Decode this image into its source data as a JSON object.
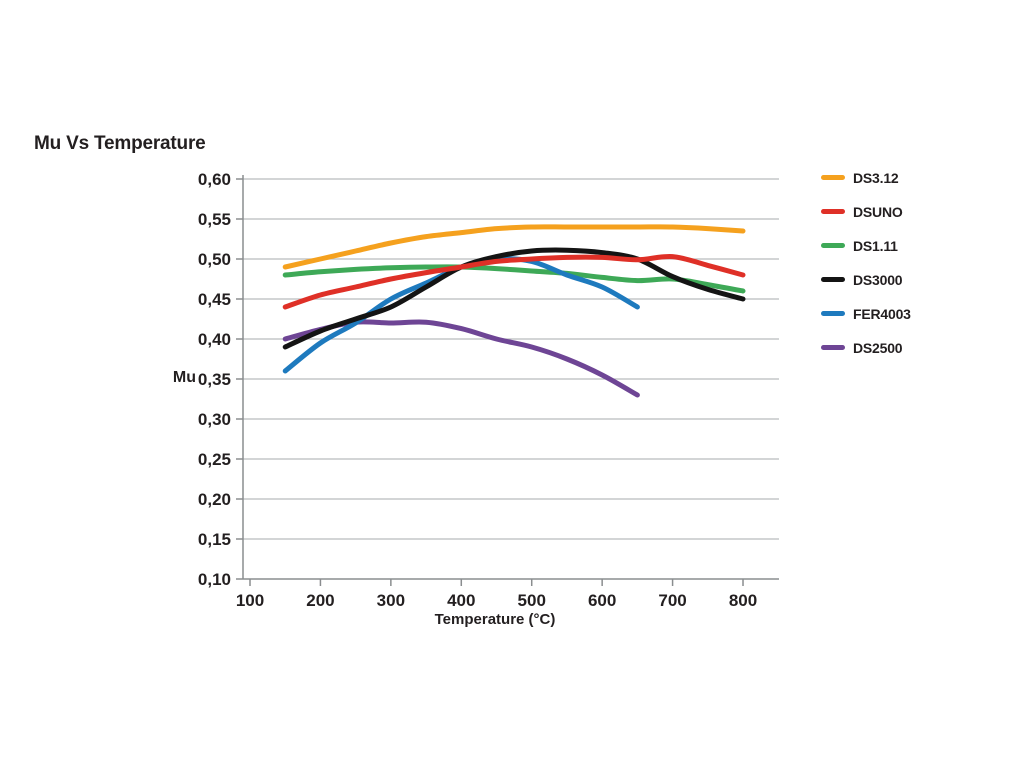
{
  "title": "Mu Vs Temperature",
  "axes": {
    "y_label": "Mu",
    "x_label": "Temperature (°C)",
    "y_tick_labels": [
      "0,60",
      "0,55",
      "0,50",
      "0,45",
      "0,40",
      "0,35",
      "0,30",
      "0,25",
      "0,20",
      "0,15",
      "0,10"
    ],
    "x_tick_labels": [
      "100",
      "200",
      "300",
      "400",
      "500",
      "600",
      "700",
      "800"
    ]
  },
  "legend": [
    {
      "label": "DS3.12",
      "color": "#F5A11E"
    },
    {
      "label": "DSUNO",
      "color": "#DF3027"
    },
    {
      "label": "DS1.11",
      "color": "#3EA957"
    },
    {
      "label": "DS3000",
      "color": "#141414"
    },
    {
      "label": "FER4003",
      "color": "#1E7ABE"
    },
    {
      "label": "DS2500",
      "color": "#6E4595"
    }
  ],
  "colors": {
    "text": "#231f20",
    "gridline": "#b9bcbe",
    "axis": "#8a8d8f",
    "background": "#ffffff"
  },
  "chart_data": {
    "type": "line",
    "title": "Mu Vs Temperature",
    "xlabel": "Temperature (°C)",
    "ylabel": "Mu",
    "xlim": [
      90,
      850
    ],
    "ylim": [
      0.1,
      0.6
    ],
    "y_tick_values": [
      0.6,
      0.55,
      0.5,
      0.45,
      0.4,
      0.35,
      0.3,
      0.25,
      0.2,
      0.15,
      0.1
    ],
    "x_tick_values": [
      100,
      200,
      300,
      400,
      500,
      600,
      700,
      800
    ],
    "grid": "horizontal-only",
    "legend_position": "right",
    "x": [
      150,
      200,
      250,
      300,
      350,
      400,
      450,
      500,
      550,
      600,
      650,
      700,
      750,
      800
    ],
    "series": [
      {
        "name": "DS3.12",
        "color": "#F5A11E",
        "values": [
          0.49,
          0.5,
          0.51,
          0.52,
          0.528,
          0.533,
          0.538,
          0.54,
          0.54,
          0.54,
          0.54,
          0.54,
          0.538,
          0.535
        ]
      },
      {
        "name": "DSUNO",
        "color": "#DF3027",
        "values": [
          0.44,
          0.455,
          0.465,
          0.475,
          0.483,
          0.49,
          0.497,
          0.5,
          0.502,
          0.502,
          0.499,
          0.503,
          0.492,
          0.48
        ]
      },
      {
        "name": "DS1.11",
        "color": "#3EA957",
        "values": [
          0.48,
          0.484,
          0.487,
          0.489,
          0.49,
          0.49,
          0.488,
          0.485,
          0.482,
          0.477,
          0.473,
          0.475,
          0.468,
          0.46
        ]
      },
      {
        "name": "DS3000",
        "color": "#141414",
        "values": [
          0.39,
          0.41,
          0.425,
          0.44,
          0.465,
          0.49,
          0.503,
          0.51,
          0.511,
          0.508,
          0.5,
          0.478,
          0.462,
          0.45
        ]
      },
      {
        "name": "FER4003",
        "color": "#1E7ABE",
        "values": [
          0.36,
          0.395,
          0.42,
          0.45,
          0.47,
          0.49,
          0.5,
          0.497,
          0.48,
          0.465,
          0.44,
          null,
          null,
          null
        ]
      },
      {
        "name": "DS2500",
        "color": "#6E4595",
        "values": [
          0.4,
          0.412,
          0.421,
          0.42,
          0.421,
          0.413,
          0.4,
          0.39,
          0.375,
          0.355,
          0.33,
          null,
          null,
          null
        ]
      }
    ],
    "draw_order": [
      "DS1.11",
      "DS2500",
      "FER4003",
      "DS3000",
      "DSUNO",
      "DS3.12"
    ]
  }
}
